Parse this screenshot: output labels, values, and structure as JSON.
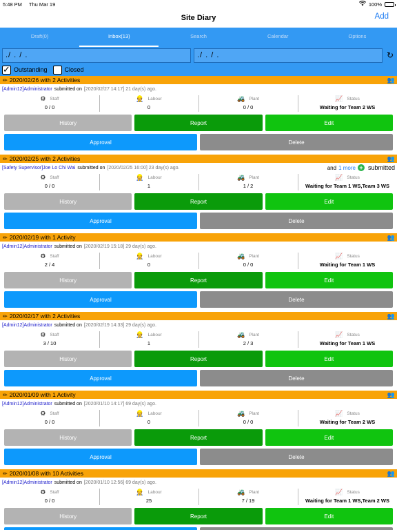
{
  "status_bar": {
    "time": "5:48 PM",
    "date": "Thu Mar 19",
    "battery": "100%"
  },
  "nav": {
    "title": "Site Diary",
    "add_label": "Add"
  },
  "tabs": [
    {
      "label": "Draft(0)"
    },
    {
      "label": "Inbox(13)"
    },
    {
      "label": "Search"
    },
    {
      "label": "Calendar"
    },
    {
      "label": "Options"
    }
  ],
  "filters": {
    "from_date": "./ . / .",
    "to_date": "./ . / .",
    "outstanding_label": "Outstanding",
    "closed_label": "Closed"
  },
  "labels": {
    "staff": "Staff",
    "labour": "Labour",
    "plant": "Plant",
    "status": "Status",
    "submitted_on": "submitted on",
    "history": "History",
    "report": "Report",
    "edit": "Edit",
    "approval": "Approval",
    "delete": "Delete",
    "and": "and",
    "submitted": "submitted"
  },
  "entries": [
    {
      "title": "2020/02/26 with 2 Activities",
      "submitter": "[Admin12]Administrator",
      "time": "[2020/02/27 14:17] 21 day(s) ago.",
      "more": "",
      "staff": "0 / 0",
      "labour": "0",
      "plant": "0 / 0",
      "status": "Waiting for Team 2 WS"
    },
    {
      "title": "2020/02/25 with 2 Activities",
      "submitter": "[Safety Supervisor]Joe Lo Chi Wai",
      "time": "[2020/02/25 16:00] 23 day(s) ago.",
      "more": "1 more",
      "staff": "0 / 0",
      "labour": "1",
      "plant": "1 / 2",
      "status": "Waiting for Team 1 WS,Team 3 WS"
    },
    {
      "title": "2020/02/19 with 1 Activity",
      "submitter": "[Admin12]Administrator",
      "time": "[2020/02/19 15:18] 29 day(s) ago.",
      "more": "",
      "staff": "2 / 4",
      "labour": "0",
      "plant": "0 / 0",
      "status": "Waiting for Team 1 WS"
    },
    {
      "title": "2020/02/17 with 2 Activities",
      "submitter": "[Admin12]Administrator",
      "time": "[2020/02/19 14:33] 29 day(s) ago.",
      "more": "",
      "staff": "3 / 10",
      "labour": "1",
      "plant": "2 / 3",
      "status": "Waiting for Team 1 WS"
    },
    {
      "title": "2020/01/09 with 1 Activity",
      "submitter": "[Admin12]Administrator",
      "time": "[2020/01/10 14:17] 69 day(s) ago.",
      "more": "",
      "staff": "0 / 0",
      "labour": "0",
      "plant": "0 / 0",
      "status": "Waiting for Team 2 WS"
    },
    {
      "title": "2020/01/08 with 10 Activities",
      "submitter": "[Admin12]Administrator",
      "time": "[2020/01/10 12:56] 69 day(s) ago.",
      "more": "",
      "staff": "0 / 0",
      "labour": "25",
      "plant": "7 / 19",
      "status": "Waiting for Team 1 WS,Team 2 WS"
    }
  ],
  "icons": {
    "pencil": "pencil-icon",
    "people": "people-icon",
    "staff": "staff-icon",
    "labour": "worker-icon",
    "plant": "excavator-icon",
    "status": "pulse-icon",
    "refresh": "refresh-icon",
    "wifi": "wifi-icon",
    "battery": "battery-icon"
  },
  "colors": {
    "accent": "#3399f3",
    "header_orange": "#f8a308",
    "link_blue": "#1e7cf2",
    "report_green": "#0a9b0a",
    "edit_green": "#10c40f",
    "approval_blue": "#0d99fc",
    "history_gray": "#b3b3b3",
    "delete_gray": "#8c8c8c"
  }
}
